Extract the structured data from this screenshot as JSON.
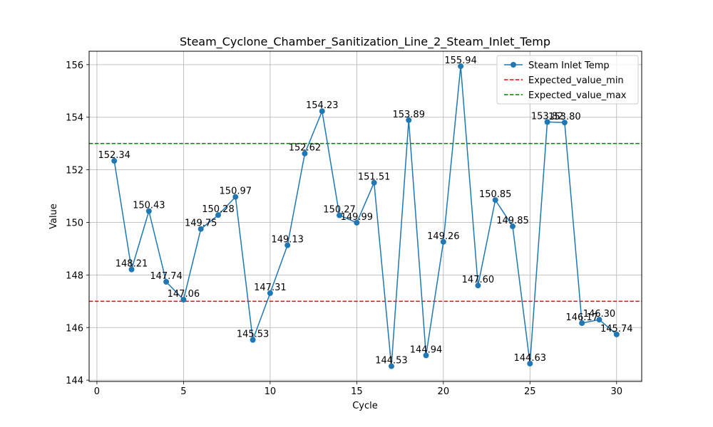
{
  "chart_data": {
    "type": "line",
    "title": "Steam_Cyclone_Chamber_Sanitization_Line_2_Steam_Inlet_Temp",
    "xlabel": "Cycle",
    "ylabel": "Value",
    "xlim": [
      -0.45,
      31.45
    ],
    "ylim": [
      143.95,
      156.51
    ],
    "xticks": [
      0,
      5,
      10,
      15,
      20,
      25,
      30
    ],
    "yticks": [
      144,
      146,
      148,
      150,
      152,
      154,
      156
    ],
    "grid": true,
    "legend_position": "top-right",
    "series": [
      {
        "name": "Steam Inlet Temp",
        "color": "#1f77b4",
        "marker": "circle",
        "x": [
          1,
          2,
          3,
          4,
          5,
          6,
          7,
          8,
          9,
          10,
          11,
          12,
          13,
          14,
          15,
          16,
          17,
          18,
          19,
          20,
          21,
          22,
          23,
          24,
          25,
          26,
          27,
          28,
          29,
          30
        ],
        "values": [
          152.34,
          148.21,
          150.43,
          147.74,
          147.06,
          149.75,
          150.28,
          150.97,
          145.53,
          147.31,
          149.13,
          152.62,
          154.23,
          150.27,
          149.99,
          151.51,
          144.53,
          153.89,
          144.94,
          149.26,
          155.94,
          147.6,
          150.85,
          149.85,
          144.63,
          153.82,
          153.8,
          146.17,
          146.3,
          145.74
        ],
        "labels": [
          "152.34",
          "148.21",
          "150.43",
          "147.74",
          "147.06",
          "149.75",
          "150.28",
          "150.97",
          "145.53",
          "147.31",
          "149.13",
          "152.62",
          "154.23",
          "150.27",
          "149.99",
          "151.51",
          "144.53",
          "153.89",
          "144.94",
          "149.26",
          "155.94",
          "147.60",
          "150.85",
          "149.85",
          "144.63",
          "153.82",
          "153.80",
          "146.17",
          "146.30",
          "145.74"
        ]
      }
    ],
    "reference_lines": [
      {
        "name": "Expected_value_min",
        "value": 147,
        "color": "#ff0000",
        "style": "dashed"
      },
      {
        "name": "Expected_value_max",
        "value": 153,
        "color": "#008000",
        "style": "dashed"
      }
    ]
  }
}
